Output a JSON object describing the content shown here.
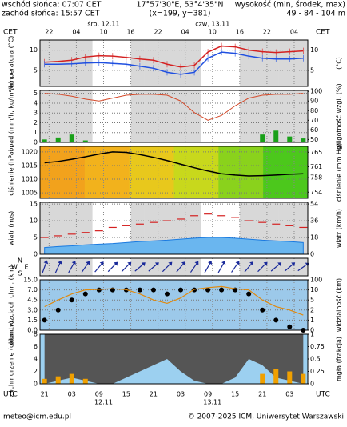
{
  "header": {
    "sunrise": "wschód słońca: 07:07 CET",
    "sunset": "zachód słońca: 15:57 CET",
    "coords": "17°57'30\"E, 53°4'35\"N",
    "grid_point": "(x=199, y=381)",
    "height_title": "wysokość (min, środek, max)",
    "height_values": "49 - 84 - 104 m"
  },
  "top_axis": {
    "zone_left": "CET",
    "zone_right": "CET",
    "hours": [
      "22",
      "04",
      "10",
      "16",
      "22",
      "04",
      "10",
      "16",
      "22",
      "04"
    ],
    "dates": [
      "śro, 12.11",
      "czw, 13.11"
    ]
  },
  "bottom_axis": {
    "zone_left": "UTC",
    "zone_right": "UTC",
    "hours": [
      "21",
      "03",
      "09",
      "15",
      "21",
      "03",
      "09",
      "15",
      "21",
      "03"
    ],
    "dates": [
      "12.11",
      "13.11"
    ]
  },
  "chart_data": [
    {
      "type": "line",
      "label_left": "temperatura (°C)",
      "label_right": "(°C)",
      "ylim": [
        1,
        12.5
      ],
      "yticks": [
        5,
        10
      ],
      "y2lim": [
        1,
        12.5
      ],
      "y2ticks": [
        5,
        10
      ],
      "series": [
        {
          "color": "#d42020",
          "values": [
            7,
            7.2,
            7.5,
            8.3,
            8.6,
            8.5,
            8.2,
            7.8,
            7.5,
            6.5,
            5.8,
            6.2,
            9.5,
            11,
            10.8,
            10,
            9.6,
            9.4,
            9.6,
            9.8
          ]
        },
        {
          "color": "#1f4fe0",
          "values": [
            6.5,
            6.5,
            6.6,
            6.8,
            6.9,
            6.7,
            6.5,
            6,
            5.5,
            4.5,
            4,
            4.5,
            8,
            9.5,
            9.2,
            8.5,
            8,
            7.8,
            7.8,
            8
          ]
        }
      ]
    },
    {
      "type": "bar-line",
      "label_left": "opad (mm/h, kg/m²/h)",
      "label_right": "wilgotność wzgl. (%)",
      "ylim": [
        0,
        5.3
      ],
      "yticks": [
        0,
        1,
        2,
        3,
        4,
        5
      ],
      "y2lim": [
        47,
        101
      ],
      "y2ticks": [
        50,
        60,
        70,
        80,
        90,
        100
      ],
      "series": [
        {
          "color": "#19a019",
          "values": [
            0.3,
            0.5,
            0.8,
            0.2,
            0,
            0,
            0,
            0,
            0,
            0,
            0,
            0,
            0,
            0,
            0,
            0,
            0.8,
            1.2,
            0.6,
            0.4
          ]
        },
        {
          "color": "#d44a2a",
          "axis": "y2",
          "values": [
            98,
            97,
            95,
            92,
            90,
            93,
            96,
            97,
            97,
            96,
            90,
            78,
            70,
            75,
            85,
            93,
            96,
            97,
            97,
            98
          ]
        }
      ]
    },
    {
      "type": "line",
      "label_left": "ciśnienie (hPa)",
      "label_right": "ciśnienie (mm Hg)",
      "ylim": [
        1003,
        1022
      ],
      "yticks": [
        1005,
        1010,
        1015,
        1020
      ],
      "y2lim": [
        752.3,
        766.6
      ],
      "y2ticks": [
        754,
        758,
        761,
        765
      ],
      "series": [
        {
          "color": "#000000",
          "values": [
            1016,
            1016.5,
            1017.3,
            1018.2,
            1019.2,
            1020,
            1019.8,
            1019,
            1018,
            1016.8,
            1015.5,
            1014.2,
            1013,
            1012,
            1011.5,
            1011.2,
            1011.3,
            1011.5,
            1011.8,
            1012
          ]
        }
      ]
    },
    {
      "type": "area-line",
      "label_left": "wiatr (m/s)",
      "label_right": "wiatr (km/h)",
      "ylim": [
        0,
        15.5
      ],
      "yticks": [
        0,
        5,
        10,
        15
      ],
      "y2lim": [
        0,
        55.8
      ],
      "y2ticks": [
        0,
        18,
        36,
        54
      ],
      "series": [
        {
          "color": "#1a7ae0",
          "values": [
            2,
            2.3,
            2.5,
            2.8,
            3,
            3.2,
            3.5,
            3.8,
            4,
            4.2,
            4.5,
            4.8,
            5,
            5,
            4.8,
            4.5,
            4.2,
            4,
            3.8,
            3.5
          ]
        },
        {
          "color": "#d42020",
          "values": [
            5,
            5.5,
            6,
            6.5,
            7,
            8,
            8.5,
            9,
            9.5,
            10,
            10.5,
            11.5,
            12,
            11.5,
            11,
            10,
            9.5,
            9,
            8.5,
            8
          ]
        }
      ]
    },
    {
      "type": "arrows",
      "compass": [
        "N",
        "S",
        "W",
        "E"
      ],
      "color": "#1a2a9a",
      "values": [
        200,
        205,
        210,
        215,
        220,
        225,
        225,
        230,
        230,
        225,
        220,
        215,
        210,
        210,
        215,
        220,
        225,
        230,
        230,
        235
      ]
    },
    {
      "type": "line-dots",
      "label_left": "pion. rozciągł. chm. (km)",
      "label_right": "widzialność (km)",
      "yticks": [
        {
          "value": 0,
          "label": "0.0"
        },
        {
          "value": 1.5,
          "label": "1.5"
        },
        {
          "value": 3,
          "label": "3.0"
        },
        {
          "value": 4.5,
          "label": "4.5"
        },
        {
          "value": 7,
          "label": "7.0"
        },
        {
          "value": 15,
          "label": "15.0"
        }
      ],
      "y2ticks": [
        0,
        1,
        2,
        5,
        10,
        100
      ],
      "series": [
        {
          "color": "#000000",
          "values": [
            1.5,
            3,
            4.5,
            6,
            7,
            7,
            7,
            7,
            7,
            6,
            7,
            7,
            7,
            7,
            7,
            6,
            3,
            1.5,
            0.5,
            0
          ]
        },
        {
          "color": "#e08a10",
          "axis": "y2",
          "values": [
            3,
            5,
            8,
            10,
            15,
            20,
            12,
            8,
            5,
            4,
            6,
            15,
            30,
            40,
            20,
            10,
            5,
            3,
            2,
            1.5
          ]
        }
      ]
    },
    {
      "type": "area-bar",
      "label_left": "zachmurzenie (oktanty)",
      "label_right": "mgła (frakcja)",
      "ylim": [
        0,
        8
      ],
      "yticks": [
        0,
        2,
        4,
        6,
        8
      ],
      "y2lim": [
        0,
        1
      ],
      "y2ticks": [
        0,
        0.25,
        0.5,
        0.75,
        1
      ],
      "series": [
        {
          "color": "#555555",
          "values": [
            8,
            7.5,
            7,
            7.5,
            8,
            8,
            7,
            6,
            5,
            4,
            6,
            7.5,
            8,
            8,
            7,
            4,
            5,
            7,
            7.5,
            8
          ]
        },
        {
          "color": "#f0a000",
          "axis": "y2",
          "values": [
            0.1,
            0.15,
            0.2,
            0.1,
            0,
            0,
            0,
            0,
            0,
            0,
            0,
            0,
            0,
            0,
            0,
            0,
            0.2,
            0.3,
            0.25,
            0.2
          ]
        }
      ]
    }
  ],
  "footer": {
    "email": "meteo@icm.edu.pl",
    "copyright": "© 2007-2025 ICM, Uniwersytet Warszawski"
  }
}
